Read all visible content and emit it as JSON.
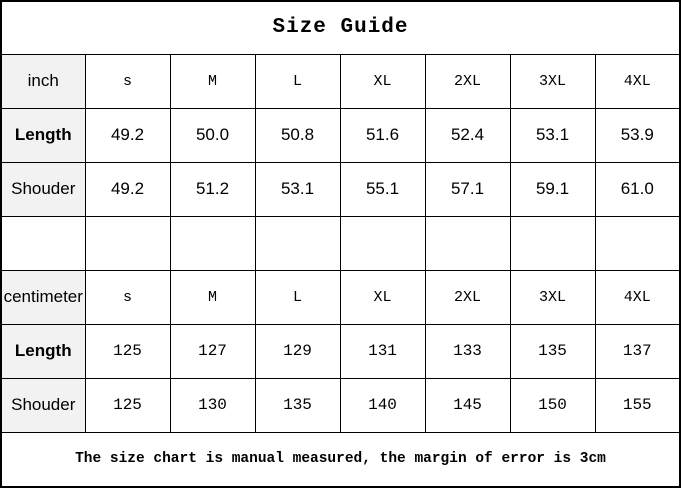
{
  "title": "Size Guide",
  "footer_note": "The size chart is manual measured, the margin of error is 3cm",
  "colors": {
    "border": "#000000",
    "label_bg": "#f2f2f2",
    "background": "#ffffff",
    "text": "#000000"
  },
  "sections": [
    {
      "unit_label": "inch",
      "sizes": [
        "s",
        "M",
        "L",
        "XL",
        "2XL",
        "3XL",
        "4XL"
      ],
      "rows": [
        {
          "label": "Length",
          "values": [
            "49.2",
            "50.0",
            "50.8",
            "51.6",
            "52.4",
            "53.1",
            "53.9"
          ]
        },
        {
          "label": "Shouder",
          "values": [
            "49.2",
            "51.2",
            "53.1",
            "55.1",
            "57.1",
            "59.1",
            "61.0"
          ]
        }
      ]
    },
    {
      "unit_label": "centimeter",
      "sizes": [
        "s",
        "M",
        "L",
        "XL",
        "2XL",
        "3XL",
        "4XL"
      ],
      "rows": [
        {
          "label": "Length",
          "values": [
            "125",
            "127",
            "129",
            "131",
            "133",
            "135",
            "137"
          ]
        },
        {
          "label": "Shouder",
          "values": [
            "125",
            "130",
            "135",
            "140",
            "145",
            "150",
            "155"
          ]
        }
      ]
    }
  ],
  "chart_data": {
    "type": "table",
    "title": "Size Guide",
    "columns": [
      "",
      "s",
      "M",
      "L",
      "XL",
      "2XL",
      "3XL",
      "4XL"
    ],
    "rows": [
      [
        "inch",
        "s",
        "M",
        "L",
        "XL",
        "2XL",
        "3XL",
        "4XL"
      ],
      [
        "Length",
        49.2,
        50.0,
        50.8,
        51.6,
        52.4,
        53.1,
        53.9
      ],
      [
        "Shouder",
        49.2,
        51.2,
        53.1,
        55.1,
        57.1,
        59.1,
        61.0
      ],
      [
        "",
        "",
        "",
        "",
        "",
        "",
        "",
        ""
      ],
      [
        "centimeter",
        "s",
        "M",
        "L",
        "XL",
        "2XL",
        "3XL",
        "4XL"
      ],
      [
        "Length",
        125,
        127,
        129,
        131,
        133,
        135,
        137
      ],
      [
        "Shouder",
        125,
        130,
        135,
        140,
        145,
        150,
        155
      ]
    ],
    "footnote": "The size chart is manual measured, the margin of error is 3cm"
  }
}
